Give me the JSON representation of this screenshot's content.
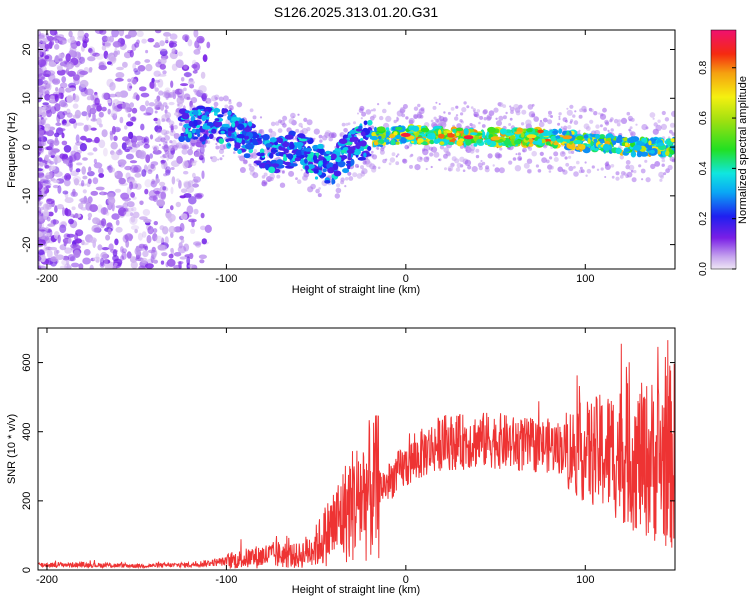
{
  "title": "S126.2025.313.01.20.G31",
  "chart_data": [
    {
      "type": "heatmap",
      "name": "spectrogram",
      "xlabel": "Height of straight line (km)",
      "ylabel": "Frequency (Hz)",
      "xlim": [
        -205,
        150
      ],
      "ylim": [
        -25,
        24
      ],
      "xticks": [
        -200,
        -100,
        0,
        100
      ],
      "yticks": [
        -20,
        -10,
        0,
        10,
        20
      ],
      "ridge": [
        {
          "x": -120,
          "y": 5
        },
        {
          "x": -100,
          "y": 4
        },
        {
          "x": -85,
          "y": 1
        },
        {
          "x": -75,
          "y": -2
        },
        {
          "x": -60,
          "y": 0
        },
        {
          "x": -50,
          "y": -3
        },
        {
          "x": -40,
          "y": -4
        },
        {
          "x": -30,
          "y": 0
        },
        {
          "x": -20,
          "y": 2
        },
        {
          "x": 0,
          "y": 2.5
        },
        {
          "x": 40,
          "y": 2
        },
        {
          "x": 80,
          "y": 2
        },
        {
          "x": 100,
          "y": 1
        },
        {
          "x": 130,
          "y": 0
        },
        {
          "x": 150,
          "y": 0
        }
      ],
      "colorbar": {
        "label": "Normalized spectral amplitude",
        "range": [
          0,
          0.95
        ],
        "ticks": [
          0.0,
          0.2,
          0.4,
          0.6,
          0.8
        ],
        "tick_labels": [
          "0.0",
          "0.2",
          "0.4",
          "0.6",
          "0.8"
        ]
      }
    },
    {
      "type": "line",
      "name": "snr",
      "xlabel": "Height of straight line (km)",
      "ylabel": "SNR (10 * v/v)",
      "xlim": [
        -205,
        150
      ],
      "ylim": [
        0,
        700
      ],
      "xticks": [
        -200,
        -100,
        0,
        100
      ],
      "yticks": [
        0,
        200,
        400,
        600
      ],
      "color": "#ee3333",
      "series": [
        {
          "name": "SNR",
          "x": [
            -205,
            -180,
            -150,
            -120,
            -100,
            -80,
            -70,
            -60,
            -50,
            -45,
            -40,
            -35,
            -30,
            -25,
            -20,
            -15,
            -10,
            -5,
            0,
            10,
            20,
            30,
            40,
            50,
            60,
            70,
            80,
            90,
            100,
            110,
            120,
            130,
            140,
            150
          ],
          "y": [
            15,
            15,
            12,
            15,
            25,
            40,
            45,
            40,
            70,
            100,
            130,
            160,
            190,
            210,
            230,
            240,
            250,
            280,
            300,
            340,
            370,
            370,
            375,
            375,
            365,
            360,
            360,
            350,
            340,
            340,
            340,
            320,
            320,
            330
          ]
        }
      ]
    }
  ]
}
